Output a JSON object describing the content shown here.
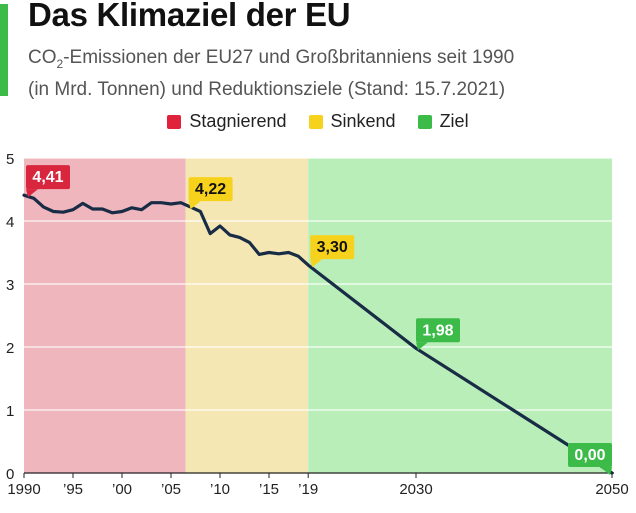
{
  "header": {
    "title": "Das Klimaziel der EU",
    "subtitle_prefix": "CO",
    "subtitle_sub": "2",
    "subtitle_line1_rest": "-Emissionen der EU27 und Großbritanniens seit 1990",
    "subtitle_line2": "(in Mrd. Tonnen) und Reduktionsziele (Stand: 15.7.2021)"
  },
  "colors": {
    "accent": "#3dbb49",
    "line": "#182c45",
    "stagnierend_bg": "#f0b6be",
    "sinkend_bg": "#f5e7b4",
    "ziel_bg": "#b9eeb9",
    "stagnierend_swatch": "#e0223a",
    "sinkend_swatch": "#f7d21d",
    "ziel_swatch": "#3dbb49"
  },
  "legend": [
    {
      "label": "Stagnierend",
      "color": "#e0223a"
    },
    {
      "label": "Sinkend",
      "color": "#f7d21d"
    },
    {
      "label": "Ziel",
      "color": "#3dbb49"
    }
  ],
  "chart_data": {
    "type": "line",
    "title": "Das Klimaziel der EU",
    "ylabel": "Mrd. Tonnen CO2",
    "xlim": [
      1990,
      2050
    ],
    "ylim": [
      0,
      5
    ],
    "y_ticks": [
      0,
      1,
      2,
      3,
      4,
      5
    ],
    "x_ticks": [
      {
        "value": 1990,
        "label": "1990"
      },
      {
        "value": 1995,
        "label": "’95"
      },
      {
        "value": 2000,
        "label": "’00"
      },
      {
        "value": 2005,
        "label": "’05"
      },
      {
        "value": 2010,
        "label": "’10"
      },
      {
        "value": 2015,
        "label": "’15"
      },
      {
        "value": 2019,
        "label": "’19"
      },
      {
        "value": 2030,
        "label": "2030"
      },
      {
        "value": 2050,
        "label": "2050"
      }
    ],
    "phases": [
      {
        "name": "Stagnierend",
        "from": 1990,
        "to": 2006.5
      },
      {
        "name": "Sinkend",
        "from": 2006.5,
        "to": 2019
      },
      {
        "name": "Ziel",
        "from": 2019,
        "to": 2050
      }
    ],
    "series": [
      {
        "name": "CO2-Emissionen",
        "x": [
          1990,
          1991,
          1992,
          1993,
          1994,
          1995,
          1996,
          1997,
          1998,
          1999,
          2000,
          2001,
          2002,
          2003,
          2004,
          2005,
          2006,
          2007,
          2008,
          2009,
          2010,
          2011,
          2012,
          2013,
          2014,
          2015,
          2016,
          2017,
          2018,
          2019,
          2030,
          2050
        ],
        "values": [
          4.41,
          4.36,
          4.22,
          4.15,
          4.14,
          4.18,
          4.28,
          4.19,
          4.19,
          4.13,
          4.15,
          4.21,
          4.18,
          4.29,
          4.29,
          4.27,
          4.29,
          4.22,
          4.15,
          3.8,
          3.92,
          3.78,
          3.74,
          3.66,
          3.47,
          3.5,
          3.48,
          3.5,
          3.44,
          3.3,
          1.98,
          0.0
        ]
      }
    ],
    "annotations": [
      {
        "x": 1990,
        "y": 4.41,
        "label": "4,41",
        "phase": "Stagnierend"
      },
      {
        "x": 2007,
        "y": 4.22,
        "label": "4,22",
        "phase": "Sinkend"
      },
      {
        "x": 2019,
        "y": 3.3,
        "label": "3,30",
        "phase": "Sinkend"
      },
      {
        "x": 2030,
        "y": 1.98,
        "label": "1,98",
        "phase": "Ziel"
      },
      {
        "x": 2050,
        "y": 0.0,
        "label": "0,00",
        "phase": "Ziel"
      }
    ]
  }
}
